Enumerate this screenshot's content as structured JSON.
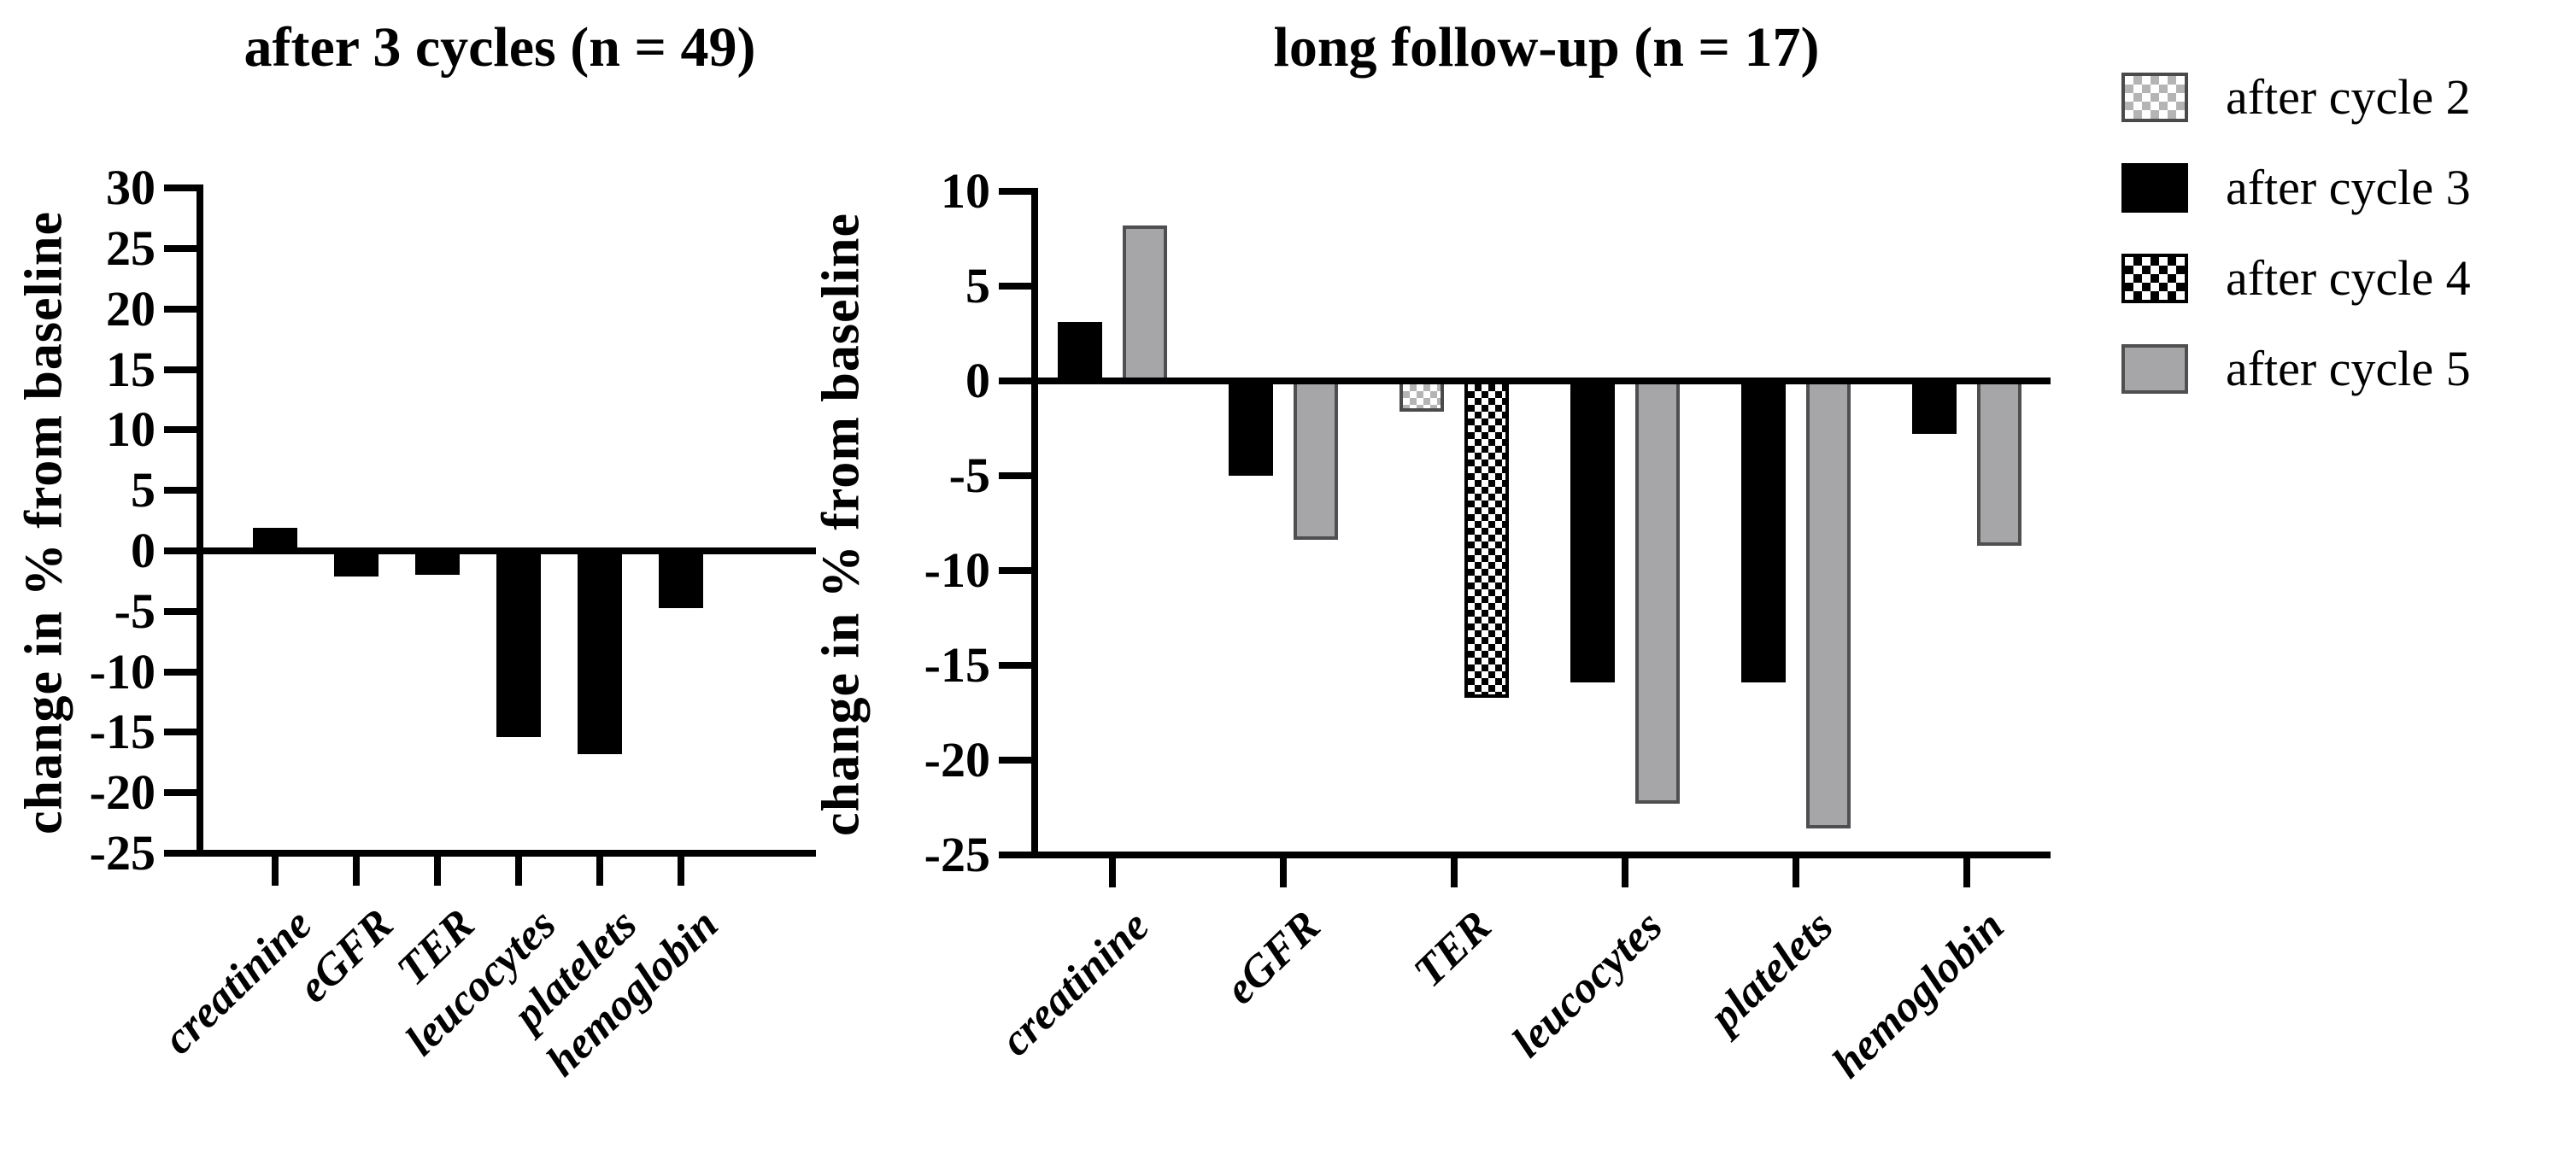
{
  "figure": {
    "background": "#ffffff",
    "text_color": "#000000"
  },
  "colors": {
    "series_black": "#000000",
    "series_gray": "#a6a6a9",
    "series_gray_border": "#4f4f52",
    "checker_gray": "#b4b4b4",
    "axis": "#000000"
  },
  "legend": {
    "position": "top-right",
    "items": [
      {
        "label": "after cycle 2",
        "style": "checker-gray",
        "swatch": "light-gray-checkerboard"
      },
      {
        "label": "after cycle 3",
        "style": "solid-black",
        "swatch": "solid-black"
      },
      {
        "label": "after cycle 4",
        "style": "checker-black",
        "swatch": "black-white-checkerboard"
      },
      {
        "label": "after cycle 5",
        "style": "solid-gray",
        "swatch": "solid-gray"
      }
    ]
  },
  "chart_data": [
    {
      "type": "bar",
      "title": "after 3 cycles (n = 49)",
      "xlabel": "",
      "ylabel": "change in % from baseline",
      "categories": [
        "creatinine",
        "eGFR",
        "TER",
        "leucocytes",
        "platelets",
        "hemoglobin"
      ],
      "ylim": [
        -25,
        30
      ],
      "yticks": [
        30,
        25,
        20,
        15,
        10,
        5,
        0,
        -5,
        -10,
        -15,
        -20,
        -25
      ],
      "grid": false,
      "legend_position": "none",
      "series": [
        {
          "name": "after 3 cycles",
          "style": "solid-black",
          "values": [
            1.9,
            -2.1,
            -2.0,
            -15.4,
            -16.8,
            -4.7
          ]
        }
      ]
    },
    {
      "type": "bar",
      "title": "long follow-up (n = 17)",
      "xlabel": "",
      "ylabel": "change in % from baseline",
      "categories": [
        "creatinine",
        "eGFR",
        "TER",
        "leucocytes",
        "platelets",
        "hemoglobin"
      ],
      "ylim": [
        -25,
        10
      ],
      "yticks": [
        10,
        5,
        0,
        -5,
        -10,
        -15,
        -20,
        -25
      ],
      "grid": false,
      "legend_position": "top-right",
      "series": [
        {
          "name": "after cycle 2",
          "style": "checker-gray",
          "values": [
            null,
            null,
            -1.6,
            null,
            null,
            null
          ]
        },
        {
          "name": "after cycle 3",
          "style": "solid-black",
          "values": [
            3.1,
            -5.0,
            null,
            -15.9,
            -15.9,
            -2.8
          ]
        },
        {
          "name": "after cycle 4",
          "style": "checker-black",
          "values": [
            null,
            null,
            -16.7,
            null,
            null,
            null
          ]
        },
        {
          "name": "after cycle 5",
          "style": "solid-gray",
          "values": [
            8.2,
            -8.4,
            null,
            -22.3,
            -23.6,
            -8.7
          ]
        }
      ]
    }
  ]
}
